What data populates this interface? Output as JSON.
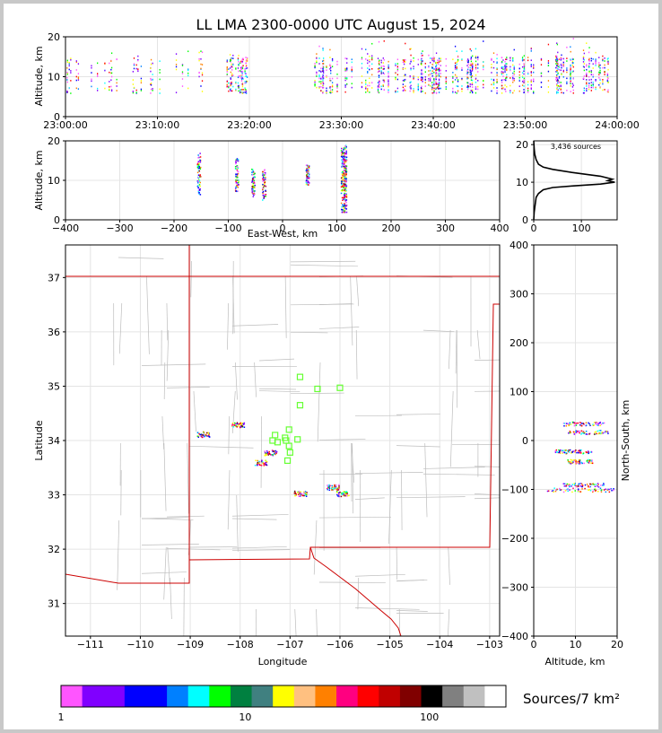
{
  "chart_data": [
    {
      "id": "time-height",
      "type": "scatter",
      "title": "LL LMA 2300-0000 UTC August 15, 2024",
      "ylabel": "Altitude, km",
      "xlim": [
        "23:00:00",
        "24:00:00"
      ],
      "ylim": [
        0,
        20
      ],
      "x_ticks": [
        "23:00:00",
        "23:10:00",
        "23:20:00",
        "23:30:00",
        "23:40:00",
        "23:50:00",
        "24:00:00"
      ],
      "y_ticks": [
        "0",
        "10",
        "20"
      ],
      "activity_bursts": [
        {
          "start": "23:00:00",
          "end": "23:15:00",
          "density": "sparse"
        },
        {
          "start": "23:17:30",
          "end": "23:20:00",
          "density": "sparse"
        },
        {
          "start": "23:27:00",
          "end": "23:59:00",
          "density": "dense"
        }
      ]
    },
    {
      "id": "ew-height",
      "type": "scatter",
      "xlabel": "East-West, km",
      "ylabel": "Altitude, km",
      "xlim": [
        -400,
        400
      ],
      "ylim": [
        0,
        20
      ],
      "x_ticks": [
        "−400",
        "−300",
        "−200",
        "−100",
        "0",
        "100",
        "200",
        "300",
        "400"
      ],
      "y_ticks": [
        "0",
        "10",
        "20"
      ],
      "clusters": [
        {
          "x": -155,
          "zmin": 6,
          "zmax": 18
        },
        {
          "x": -85,
          "zmin": 7,
          "zmax": 16
        },
        {
          "x": -55,
          "zmin": 6,
          "zmax": 13
        },
        {
          "x": -35,
          "zmin": 5,
          "zmax": 13
        },
        {
          "x": 45,
          "zmin": 9,
          "zmax": 14
        },
        {
          "x": 112,
          "zmin": 2,
          "zmax": 19
        }
      ]
    },
    {
      "id": "altitude-histogram",
      "type": "line",
      "annotation": "3,436 sources",
      "xlim": [
        0,
        175
      ],
      "ylim": [
        0,
        21
      ],
      "x_ticks": [
        "0",
        "100"
      ],
      "y_ticks": [
        "0",
        "10",
        "20"
      ],
      "profile": [
        [
          0,
          0
        ],
        [
          1,
          2
        ],
        [
          3,
          4
        ],
        [
          5,
          6
        ],
        [
          10,
          7
        ],
        [
          20,
          8
        ],
        [
          40,
          8.6
        ],
        [
          80,
          9
        ],
        [
          140,
          9.5
        ],
        [
          170,
          10
        ],
        [
          155,
          10.4
        ],
        [
          165,
          10.8
        ],
        [
          140,
          11.6
        ],
        [
          115,
          12
        ],
        [
          80,
          12.6
        ],
        [
          40,
          13.4
        ],
        [
          20,
          14
        ],
        [
          10,
          14.8
        ],
        [
          5,
          16
        ],
        [
          2,
          17.5
        ],
        [
          1,
          19
        ],
        [
          0,
          21
        ]
      ]
    },
    {
      "id": "plan-view",
      "type": "scatter",
      "xlabel": "Longitude",
      "ylabel": "Latitude",
      "xlim": [
        -111.5,
        -102.8
      ],
      "ylim": [
        30.4,
        37.6
      ],
      "x_ticks": [
        "−111",
        "−110",
        "−109",
        "−108",
        "−107",
        "−106",
        "−105",
        "−104",
        "−103"
      ],
      "y_ticks": [
        "31",
        "32",
        "33",
        "34",
        "35",
        "36",
        "37"
      ],
      "clusters": [
        {
          "lon": -108.75,
          "lat": 34.12
        },
        {
          "lon": -108.05,
          "lat": 34.3
        },
        {
          "lon": -107.4,
          "lat": 33.78
        },
        {
          "lon": -107.6,
          "lat": 33.6
        },
        {
          "lon": -106.15,
          "lat": 33.15
        },
        {
          "lon": -105.95,
          "lat": 33.03
        },
        {
          "lon": -106.8,
          "lat": 33.03
        }
      ],
      "stations": [
        [
          -106.8,
          35.17
        ],
        [
          -106.45,
          34.95
        ],
        [
          -106.0,
          34.97
        ],
        [
          -106.8,
          34.65
        ],
        [
          -107.02,
          34.2
        ],
        [
          -107.1,
          34.05
        ],
        [
          -107.3,
          34.1
        ],
        [
          -107.35,
          34.0
        ],
        [
          -107.25,
          33.97
        ],
        [
          -107.08,
          34.0
        ],
        [
          -106.85,
          34.02
        ],
        [
          -107.02,
          33.9
        ],
        [
          -107.0,
          33.78
        ],
        [
          -107.05,
          33.63
        ]
      ]
    },
    {
      "id": "ns-height",
      "type": "scatter",
      "xlabel": "Altitude, km",
      "ylabel": "North-South, km",
      "xlim": [
        0,
        20
      ],
      "ylim": [
        -400,
        400
      ],
      "x_ticks": [
        "0",
        "10",
        "20"
      ],
      "y_ticks": [
        "−400",
        "−300",
        "−200",
        "−100",
        "0",
        "100",
        "200",
        "300",
        "400"
      ],
      "clusters": [
        {
          "y": 35,
          "zmin": 7,
          "zmax": 17
        },
        {
          "y": 18,
          "zmin": 8,
          "zmax": 18
        },
        {
          "y": -22,
          "zmin": 5,
          "zmax": 14
        },
        {
          "y": -42,
          "zmin": 8,
          "zmax": 14
        },
        {
          "y": -90,
          "zmin": 7,
          "zmax": 17
        },
        {
          "y": -100,
          "zmin": 3,
          "zmax": 19
        }
      ]
    }
  ],
  "colorbar": {
    "label": "Sources/7 km²",
    "tick_labels": [
      "1",
      "10",
      "100"
    ],
    "colors": [
      "#ff55ff",
      "#8000ff",
      "#8000ff",
      "#0000ff",
      "#0000ff",
      "#0080ff",
      "#00ffff",
      "#00ff00",
      "#008040",
      "#408080",
      "#ffff00",
      "#ffc080",
      "#ff8000",
      "#ff0080",
      "#ff0000",
      "#c00000",
      "#800000",
      "#000000",
      "#808080",
      "#c0c0c0",
      "#ffffff"
    ]
  }
}
